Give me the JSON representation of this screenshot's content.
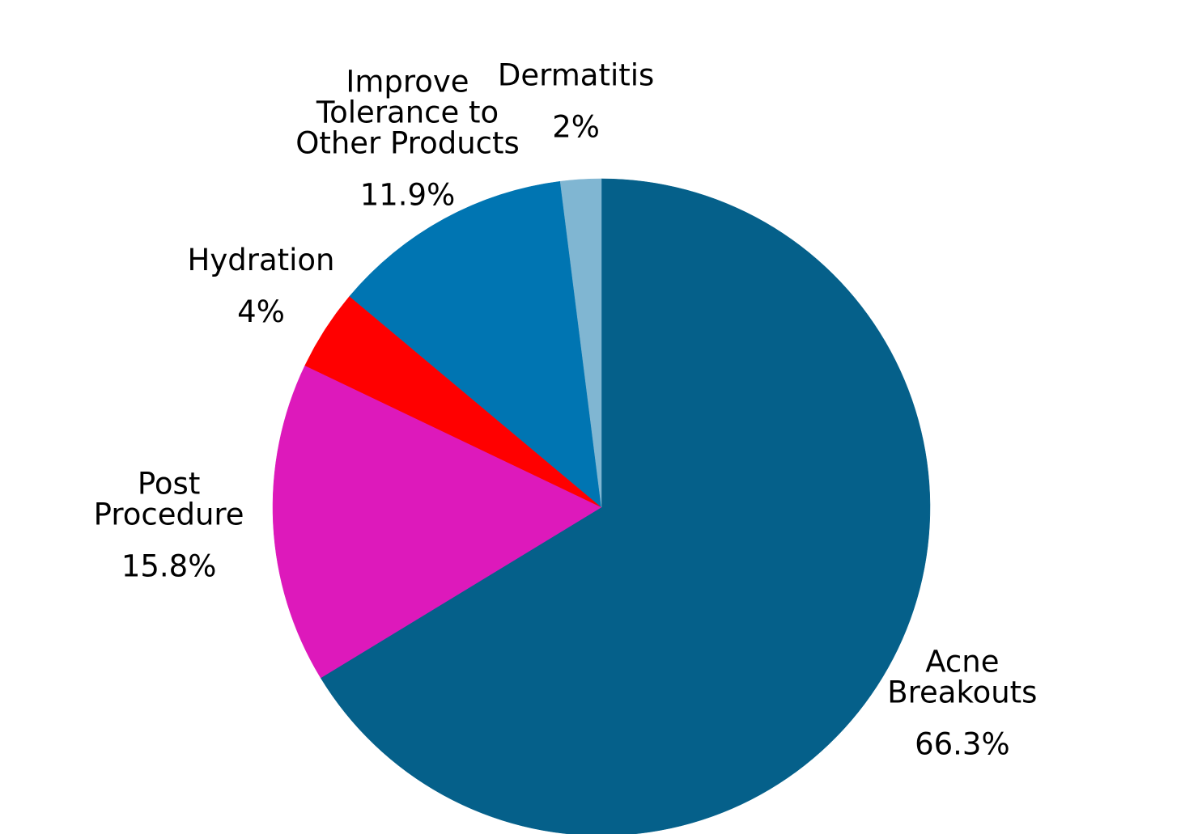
{
  "chart_data": {
    "type": "pie",
    "title": "",
    "start_angle_deg": 0,
    "direction": "clockwise",
    "slices": [
      {
        "label": "Acne Breakouts",
        "label_lines": [
          "Acne",
          "Breakouts"
        ],
        "value": 66.3,
        "value_label": "66.3%",
        "color": "#05608a"
      },
      {
        "label": "Post Procedure",
        "label_lines": [
          "Post",
          "Procedure"
        ],
        "value": 15.8,
        "value_label": "15.8%",
        "color": "#dd19bb"
      },
      {
        "label": "Hydration",
        "label_lines": [
          "Hydration"
        ],
        "value": 4,
        "value_label": "4%",
        "color": "#ff0000"
      },
      {
        "label": "Improve Tolerance to Other Products",
        "label_lines": [
          "Improve",
          "Tolerance to",
          "Other Products"
        ],
        "value": 11.9,
        "value_label": "11.9%",
        "color": "#0075b2"
      },
      {
        "label": "Dermatitis",
        "label_lines": [
          "Dermatitis"
        ],
        "value": 2,
        "value_label": "2%",
        "color": "#80b6d2"
      }
    ]
  }
}
